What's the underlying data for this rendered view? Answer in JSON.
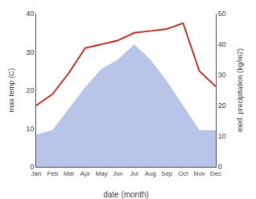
{
  "chart_data": {
    "type": "line",
    "xlabel": "date (month)",
    "ylabel": "max temp (C)",
    "y2label": "med. precipitation (kg/m2)",
    "categories": [
      "Jan",
      "Feb",
      "Mar",
      "Apr",
      "May",
      "Jun",
      "Jul",
      "Aug",
      "Sep",
      "Oct",
      "Nov",
      "Dec"
    ],
    "series": [
      {
        "type": "area",
        "axis": "y2",
        "color": "#b8c4e8",
        "values": [
          10.5,
          12.0,
          19.0,
          26.0,
          32.0,
          35.0,
          40.0,
          35.0,
          28.0,
          20.0,
          12.0,
          12.0
        ]
      },
      {
        "type": "line",
        "color": "#c0392b",
        "values": [
          16.0,
          19.0,
          24.5,
          31.0,
          32.0,
          33.0,
          35.0,
          35.5,
          36.0,
          37.5,
          25.0,
          21.0
        ]
      }
    ],
    "ylim": [
      0,
      40
    ],
    "yticks": [
      0,
      10,
      20,
      30,
      40
    ],
    "y2lim": [
      0,
      50
    ],
    "y2ticks": [
      0,
      10,
      20,
      30,
      40,
      50
    ],
    "grid": false
  }
}
